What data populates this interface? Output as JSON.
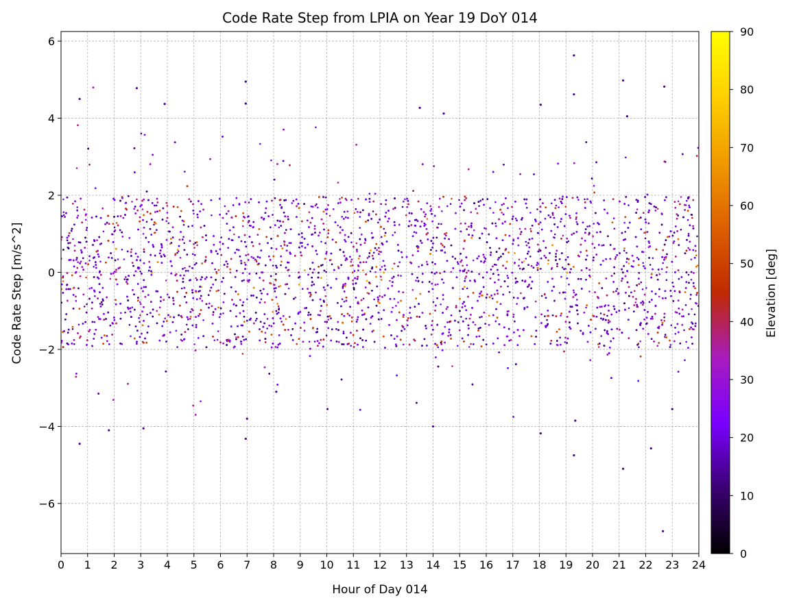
{
  "chart_data": {
    "type": "scatter",
    "title": "Code Rate Step from LPIA on Year 19 DoY 014",
    "xlabel": "Hour of Day 014",
    "ylabel": "Code Rate Step [m/s^2]",
    "xlim": [
      0,
      24
    ],
    "ylim": [
      -7.3,
      6.25
    ],
    "x_ticks": [
      0,
      1,
      2,
      3,
      4,
      5,
      6,
      7,
      8,
      9,
      10,
      11,
      12,
      13,
      14,
      15,
      16,
      17,
      18,
      19,
      20,
      21,
      22,
      23,
      24
    ],
    "y_ticks": [
      -6,
      -4,
      -2,
      0,
      2,
      4,
      6
    ],
    "y_tick_labels": [
      "−6",
      "−4",
      "−2",
      "0",
      "2",
      "4",
      "6"
    ],
    "grid": true,
    "colorbar": {
      "label": "Elevation [deg]",
      "range": [
        0,
        90
      ],
      "ticks": [
        0,
        10,
        20,
        30,
        40,
        50,
        60,
        70,
        80,
        90
      ],
      "colormap": "gnuplot",
      "colors": [
        "#000000",
        "#3b0072",
        "#7a00ff",
        "#a81cbd",
        "#c02a00",
        "#dd6000",
        "#f09a00",
        "#ffd000",
        "#ffff00"
      ]
    },
    "series": [
      {
        "description_visible": "dense band of points roughly between -2 and +2 m/s^2 across all hours, colored by satellite elevation",
        "outliers": [
          {
            "x": 0.7,
            "y": 4.5
          },
          {
            "x": 0.7,
            "y": -4.45
          },
          {
            "x": 1.8,
            "y": -4.1
          },
          {
            "x": 2.85,
            "y": 4.78
          },
          {
            "x": 3.1,
            "y": -4.05
          },
          {
            "x": 3.9,
            "y": 4.37
          },
          {
            "x": 6.95,
            "y": 4.95
          },
          {
            "x": 6.95,
            "y": 4.38
          },
          {
            "x": 6.95,
            "y": -4.32
          },
          {
            "x": 7.0,
            "y": -3.8
          },
          {
            "x": 8.1,
            "y": -3.1
          },
          {
            "x": 13.5,
            "y": 4.27
          },
          {
            "x": 14.4,
            "y": 4.12
          },
          {
            "x": 14.0,
            "y": -4.0
          },
          {
            "x": 18.05,
            "y": 4.35
          },
          {
            "x": 18.05,
            "y": -4.18
          },
          {
            "x": 19.3,
            "y": 5.63
          },
          {
            "x": 19.3,
            "y": 4.62
          },
          {
            "x": 19.3,
            "y": -4.75
          },
          {
            "x": 19.35,
            "y": -3.85
          },
          {
            "x": 21.15,
            "y": 4.98
          },
          {
            "x": 21.15,
            "y": -5.1
          },
          {
            "x": 21.3,
            "y": 4.05
          },
          {
            "x": 22.2,
            "y": -4.57
          },
          {
            "x": 22.7,
            "y": 4.82
          },
          {
            "x": 22.65,
            "y": -6.72
          },
          {
            "x": 23.0,
            "y": -3.55
          }
        ]
      }
    ]
  }
}
